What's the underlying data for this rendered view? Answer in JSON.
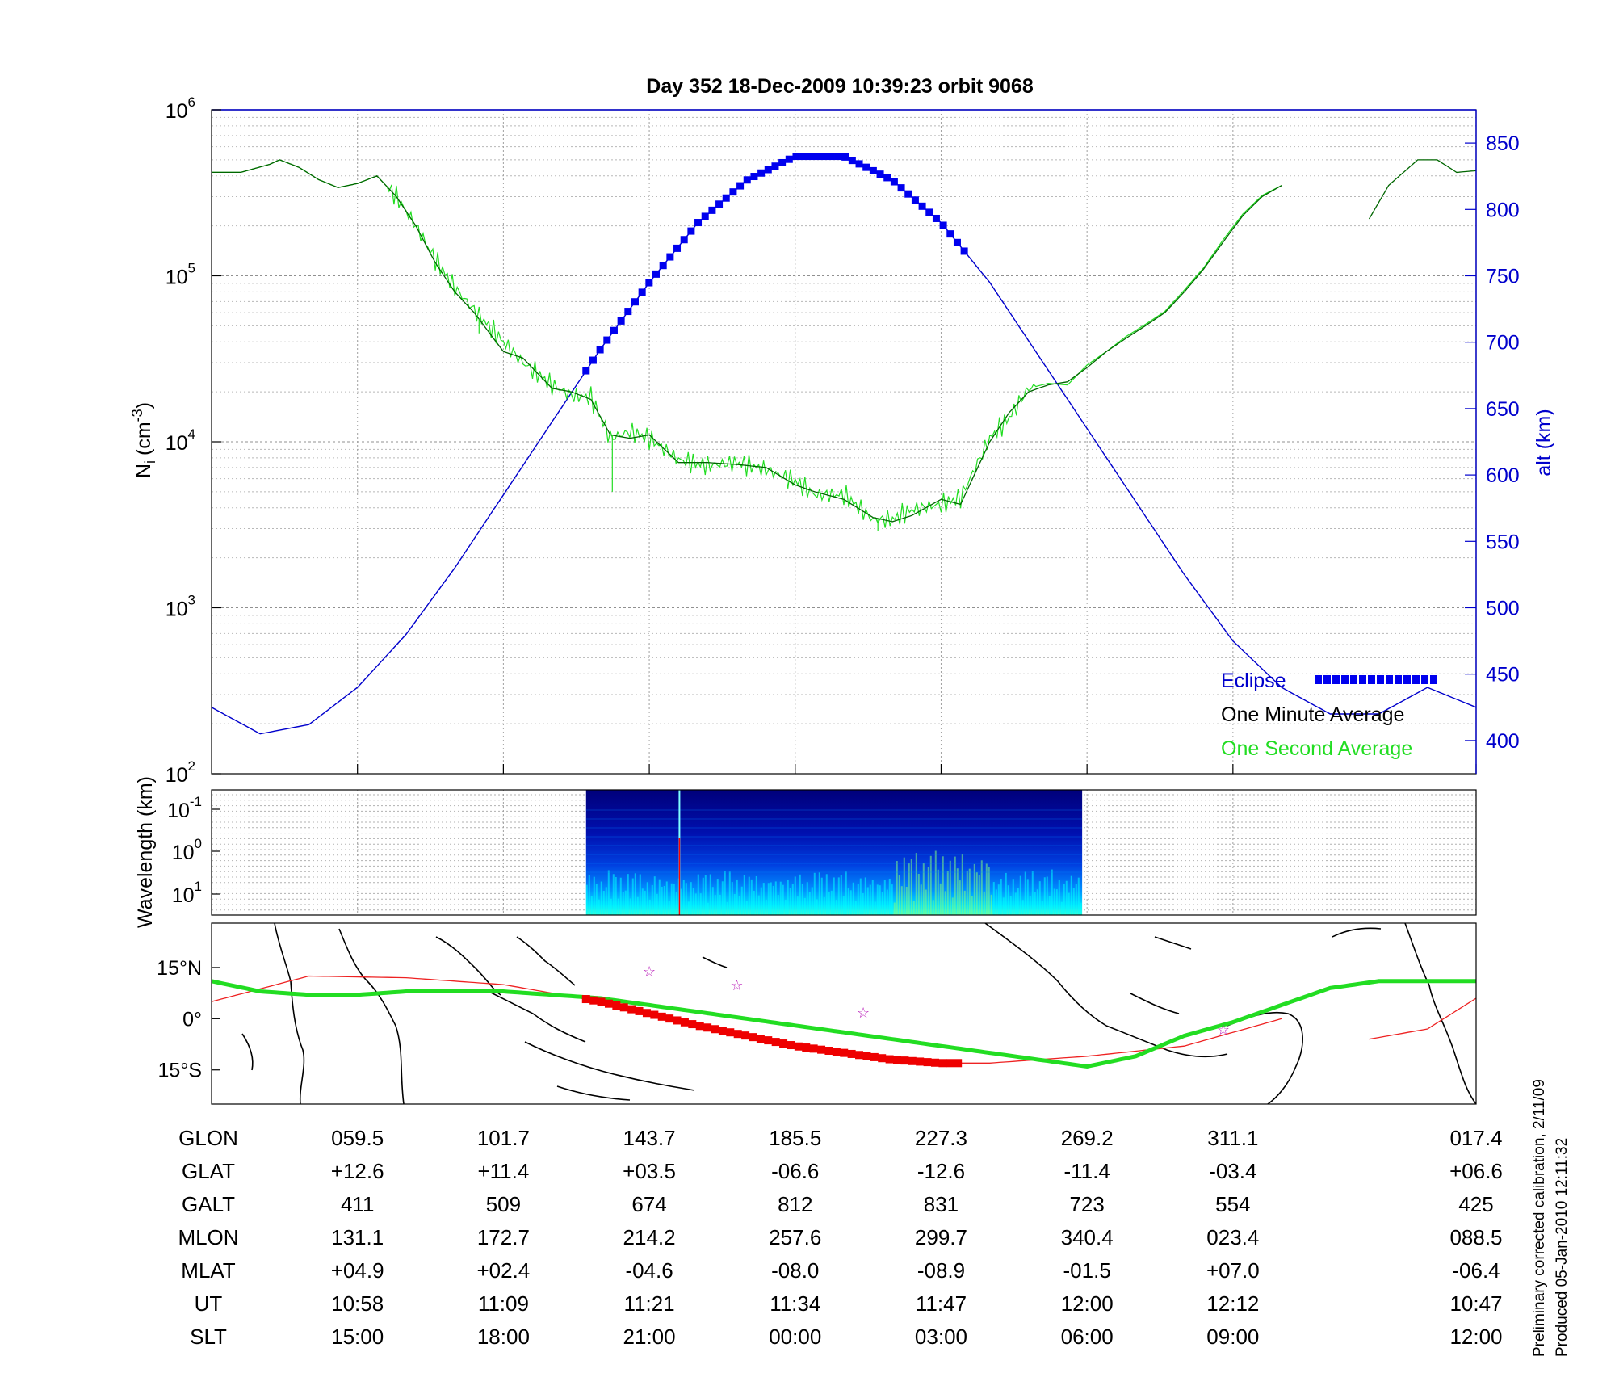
{
  "chart_data": [
    {
      "type": "line",
      "title": "Day 352  18-Dec-2009 10:39:23   orbit 9068",
      "ylabel_left": "N_i (cm^-3)",
      "ylabel_left_main": "N",
      "ylabel_left_sub": "i",
      "ylabel_left_unit": "(cm",
      "ylabel_left_exp": "-3",
      "ylabel_left_close": ")",
      "ylabel_right": "alt (km)",
      "yscale_left": "log",
      "ylim_left": [
        100,
        1000000
      ],
      "yticks_left": [
        {
          "base": "10",
          "exp": "2",
          "value": 100
        },
        {
          "base": "10",
          "exp": "3",
          "value": 1000
        },
        {
          "base": "10",
          "exp": "4",
          "value": 10000
        },
        {
          "base": "10",
          "exp": "5",
          "value": 100000
        },
        {
          "base": "10",
          "exp": "6",
          "value": 1000000
        }
      ],
      "ylim_right": [
        375,
        875
      ],
      "yticks_right": [
        "400",
        "450",
        "500",
        "550",
        "600",
        "650",
        "700",
        "750",
        "800",
        "850"
      ],
      "grid": true,
      "legend": {
        "placement": "bottom-right",
        "entries": [
          "Eclipse",
          "One Minute Average",
          "One Second Average"
        ]
      },
      "x_range_minutes": [
        0,
        130
      ],
      "series": [
        {
          "name": "alt (km)",
          "axis": "right",
          "color": "#0000cc",
          "x": [
            0,
            5,
            10,
            15,
            20,
            25,
            30,
            35,
            40,
            45,
            50,
            55,
            60,
            65,
            70,
            75,
            80,
            85,
            90,
            95,
            100,
            105,
            110,
            115,
            120,
            125,
            130
          ],
          "y": [
            425,
            405,
            412,
            440,
            480,
            530,
            585,
            640,
            695,
            745,
            790,
            822,
            840,
            840,
            822,
            790,
            745,
            690,
            635,
            580,
            525,
            475,
            440,
            420,
            420,
            440,
            425
          ]
        },
        {
          "name": "Eclipse",
          "axis": "right",
          "color": "#0000ee",
          "x_range": [
            38.5,
            77.5
          ]
        },
        {
          "name": "One Minute Average",
          "axis": "left",
          "color": "#006600",
          "gap_x": [
            110,
            119
          ],
          "x": [
            0,
            3,
            6,
            7,
            9,
            11,
            13,
            15,
            17,
            19,
            21,
            23,
            25,
            27,
            30,
            32,
            35,
            37,
            39,
            41,
            43,
            45,
            48,
            51,
            54,
            57,
            60,
            62,
            65,
            68,
            70,
            72,
            75,
            77,
            80,
            82,
            84,
            86,
            88,
            90,
            92,
            94,
            96,
            98,
            100,
            102,
            104,
            106,
            108,
            110,
            119,
            121,
            124,
            126,
            128,
            130
          ],
          "y": [
            420000,
            420000,
            470000,
            500000,
            450000,
            380000,
            340000,
            360000,
            400000,
            300000,
            200000,
            120000,
            80000,
            60000,
            35000,
            32000,
            21000,
            20000,
            18000,
            11000,
            10500,
            11000,
            7500,
            7500,
            7300,
            7000,
            5500,
            5000,
            4500,
            3500,
            3300,
            3600,
            4500,
            4200,
            10000,
            15000,
            20000,
            22000,
            23000,
            28000,
            35000,
            42000,
            50000,
            60000,
            80000,
            110000,
            160000,
            230000,
            300000,
            350000,
            220000,
            350000,
            500000,
            500000,
            420000,
            430000
          ]
        },
        {
          "name": "One Second Average",
          "axis": "left",
          "color": "#22dd22",
          "x": [
            0,
            3,
            6,
            7,
            9,
            11,
            13,
            15,
            17,
            19,
            21,
            23,
            25,
            27,
            30,
            32,
            35,
            37,
            39,
            41,
            43,
            45,
            48,
            51,
            54,
            57,
            60,
            62,
            65,
            68,
            70,
            72,
            75,
            77,
            80,
            82,
            84,
            86,
            88,
            90,
            92,
            94,
            96,
            98,
            100,
            102,
            104,
            106,
            108,
            110
          ],
          "y": [
            420000,
            420000,
            470000,
            500000,
            450000,
            380000,
            340000,
            360000,
            400000,
            300000,
            200000,
            125000,
            85000,
            62000,
            40000,
            30000,
            22000,
            19000,
            18500,
            10500,
            11500,
            10500,
            7800,
            7200,
            7500,
            6800,
            5800,
            4800,
            4800,
            3400,
            3400,
            3900,
            4200,
            4600,
            10500,
            14000,
            21000,
            22500,
            22000,
            29000,
            35000,
            43000,
            51000,
            61000,
            82000,
            112000,
            165000,
            235000,
            305000,
            350000
          ]
        }
      ],
      "x_ticks_minutes": [
        15,
        30,
        45,
        60,
        75,
        90,
        105,
        130
      ]
    },
    {
      "type": "heatmap",
      "ylabel": "Wavelength (km)",
      "yscale": "log",
      "yticks": [
        {
          "base": "10",
          "exp": "-1"
        },
        {
          "base": "10",
          "exp": "0"
        },
        {
          "base": "10",
          "exp": "1"
        }
      ],
      "x_range_minutes": [
        38.5,
        89.5
      ],
      "colormap": [
        "#00008f",
        "#0000ff",
        "#0080ff",
        "#00ffff",
        "#80ff80",
        "#ffff00",
        "#ff0000"
      ]
    },
    {
      "type": "map",
      "yticks": [
        "15°N",
        "0°",
        "15°S"
      ],
      "lat_range": [
        -25,
        28
      ],
      "ground_track": {
        "color": "#ee2222",
        "lon_minutes": [
          0,
          10,
          20,
          30,
          40,
          50,
          60,
          70,
          75,
          80,
          90,
          100,
          105,
          110,
          119,
          125,
          130
        ],
        "lat": [
          5,
          12.5,
          12,
          10,
          5,
          -2,
          -8,
          -12,
          -13,
          -13,
          -11,
          -8,
          -4,
          0,
          -6,
          -3,
          6
        ]
      },
      "magnetic_equator": {
        "color": "#22dd22",
        "x_minutes": [
          0,
          5,
          10,
          15,
          20,
          25,
          30,
          35,
          40,
          45,
          50,
          55,
          60,
          65,
          70,
          75,
          80,
          85,
          90,
          95,
          100,
          105,
          110,
          115,
          120,
          125,
          130
        ],
        "lat": [
          11,
          8,
          7,
          7,
          8,
          8,
          8,
          7,
          6,
          4,
          2,
          0,
          -2,
          -4,
          -6,
          -8,
          -10,
          -12,
          -14,
          -11,
          -5,
          -1,
          4,
          9,
          11,
          11,
          11
        ]
      },
      "eclipse_track": {
        "color": "#ee0000",
        "x_range": [
          38.5,
          77.5
        ]
      },
      "stars": [
        [
          45,
          14
        ],
        [
          54,
          10
        ],
        [
          67,
          2
        ],
        [
          104,
          -3
        ]
      ]
    }
  ],
  "table": {
    "row_labels": [
      "GLON",
      "GLAT",
      "GALT",
      "MLON",
      "MLAT",
      "UT",
      "SLT"
    ],
    "columns": [
      [
        "059.5",
        "+12.6",
        "411",
        "131.1",
        "+04.9",
        "10:58",
        "15:00"
      ],
      [
        "101.7",
        "+11.4",
        "509",
        "172.7",
        "+02.4",
        "11:09",
        "18:00"
      ],
      [
        "143.7",
        "+03.5",
        "674",
        "214.2",
        "-04.6",
        "11:21",
        "21:00"
      ],
      [
        "185.5",
        "-06.6",
        "812",
        "257.6",
        "-08.0",
        "11:34",
        "00:00"
      ],
      [
        "227.3",
        "-12.6",
        "831",
        "299.7",
        "-08.9",
        "11:47",
        "03:00"
      ],
      [
        "269.2",
        "-11.4",
        "723",
        "340.4",
        "-01.5",
        "12:00",
        "06:00"
      ],
      [
        "311.1",
        "-03.4",
        "554",
        "023.4",
        "+07.0",
        "12:12",
        "09:00"
      ],
      [
        "017.4",
        "+06.6",
        "425",
        "088.5",
        "-06.4",
        "10:47",
        "12:00"
      ]
    ]
  },
  "footer": {
    "line1": "Preliminary corrected calibration, 2/11/09",
    "line2": "Produced 05-Jan-2010 12:11:32"
  }
}
